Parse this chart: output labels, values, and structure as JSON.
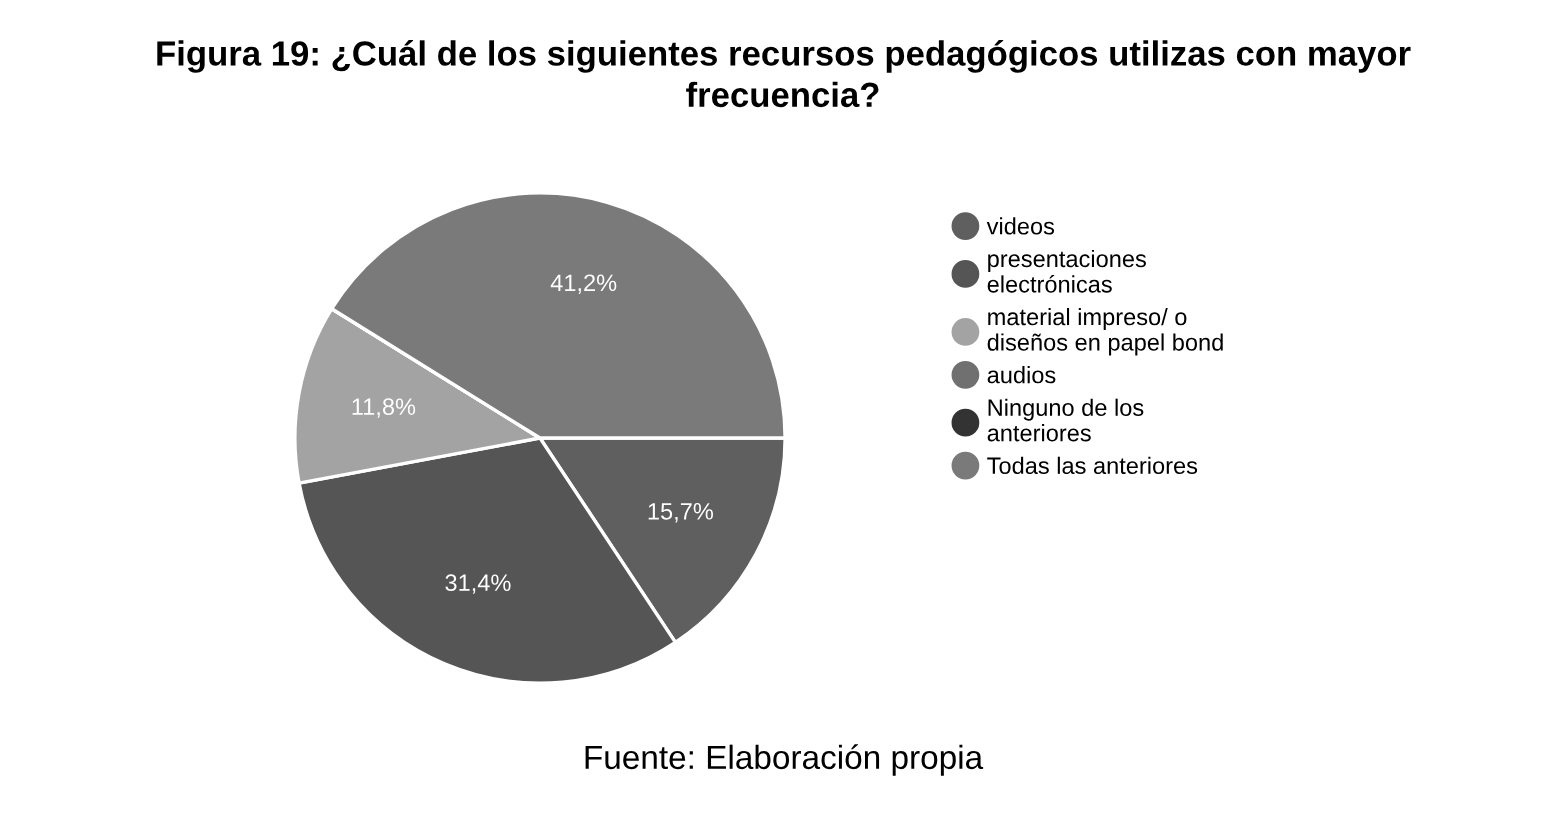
{
  "chart_data": {
    "type": "pie",
    "title": "Figura 19: ¿Cuál de los siguientes recursos pedagógicos utilizas con mayor frecuencia?",
    "categories": [
      "videos",
      "presentaciones electrónicas",
      "material impreso/ o diseños en papel bond",
      "audios",
      "Ninguno de los anteriores",
      "Todas las anteriores"
    ],
    "values": [
      15.7,
      31.4,
      11.8,
      0,
      0,
      41.2
    ],
    "value_labels": [
      "15,7%",
      "31,4%",
      "11,8%",
      null,
      null,
      "41,2%"
    ],
    "colors": [
      "#5f5f5f",
      "#555555",
      "#a3a3a3",
      "#707070",
      "#333333",
      "#7a7a7a"
    ],
    "legend": "right",
    "annotations": [
      "Fuente: Elaboración propia"
    ]
  }
}
